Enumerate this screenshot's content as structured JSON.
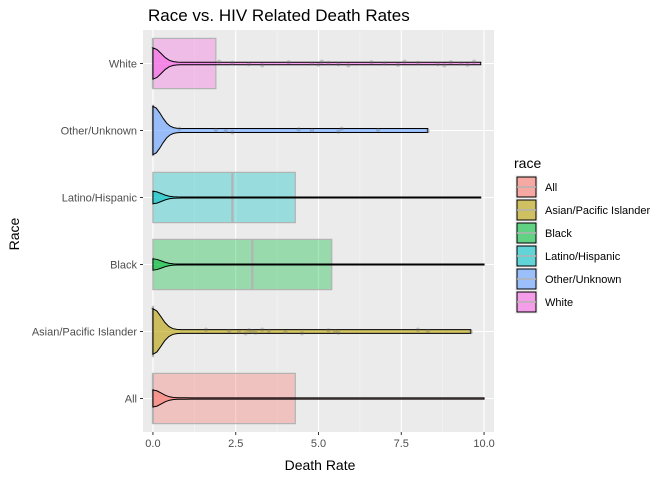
{
  "chart_data": {
    "type": "violin-box-jitter",
    "title": "Race vs. HIV Related Death Rates",
    "xlabel": "Death Rate",
    "ylabel": "Race",
    "xlim": [
      -0.3,
      10.3
    ],
    "x_ticks": [
      "0.0",
      "2.5",
      "5.0",
      "7.5",
      "10.0"
    ],
    "x_tick_values": [
      0,
      2.5,
      5,
      7.5,
      10
    ],
    "grid": true,
    "legend": {
      "title": "race",
      "placement": "right",
      "entries": [
        "All",
        "Asian/Pacific Islander",
        "Black",
        "Latino/Hispanic",
        "Other/Unknown",
        "White"
      ]
    },
    "categories": [
      "All",
      "Asian/Pacific Islander",
      "Black",
      "Latino/Hispanic",
      "Other/Unknown",
      "White"
    ],
    "colors": {
      "All": "#F8766D",
      "Asian/Pacific Islander": "#B79F00",
      "Black": "#00BA38",
      "Latino/Hispanic": "#00BFC4",
      "Other/Unknown": "#619CFF",
      "White": "#F564E3"
    },
    "boxes": [
      {
        "race": "All",
        "q1": 0,
        "median": 0,
        "q3": 4.3
      },
      {
        "race": "Asian/Pacific Islander",
        "q1": 0,
        "median": 0,
        "q3": 0
      },
      {
        "race": "Black",
        "q1": 0,
        "median": 3.0,
        "q3": 5.4
      },
      {
        "race": "Latino/Hispanic",
        "q1": 0,
        "median": 2.4,
        "q3": 4.3
      },
      {
        "race": "Other/Unknown",
        "q1": 0,
        "median": 0,
        "q3": 0
      },
      {
        "race": "White",
        "q1": 0,
        "median": 0,
        "q3": 1.9
      }
    ],
    "violins": [
      {
        "race": "All",
        "max": 10.0,
        "peak_width": 0.3
      },
      {
        "race": "Asian/Pacific Islander",
        "max": 9.6,
        "peak_width": 0.8
      },
      {
        "race": "Black",
        "max": 10.0,
        "peak_width": 0.2
      },
      {
        "race": "Latino/Hispanic",
        "max": 9.9,
        "peak_width": 0.22
      },
      {
        "race": "Other/Unknown",
        "max": 8.3,
        "peak_width": 0.85
      },
      {
        "race": "White",
        "max": 9.9,
        "peak_width": 0.55
      }
    ],
    "points": [
      {
        "race": "Asian/Pacific Islander",
        "x": [
          1.6,
          2.3,
          2.6,
          2.8,
          2.9,
          3.0,
          3.1,
          3.3,
          3.5,
          4.0,
          4.5,
          5.3,
          5.5,
          5.6,
          8.0,
          8.3,
          9.6
        ]
      },
      {
        "race": "Other/Unknown",
        "x": [
          0.8,
          1.9,
          2.2,
          2.4,
          4.4,
          4.8,
          5.6,
          5.7,
          6.8,
          8.3
        ]
      },
      {
        "race": "White",
        "x": [
          2.0,
          2.4,
          2.9,
          3.3,
          4.1,
          4.8,
          5.0,
          5.1,
          5.3,
          5.6,
          5.9,
          6.6,
          7.0,
          7.4,
          7.6,
          8.0,
          8.6,
          8.8,
          9.0,
          9.3,
          9.5,
          9.7
        ]
      },
      {
        "race": "All",
        "x": []
      },
      {
        "race": "Black",
        "x": []
      },
      {
        "race": "Latino/Hispanic",
        "x": []
      }
    ]
  }
}
